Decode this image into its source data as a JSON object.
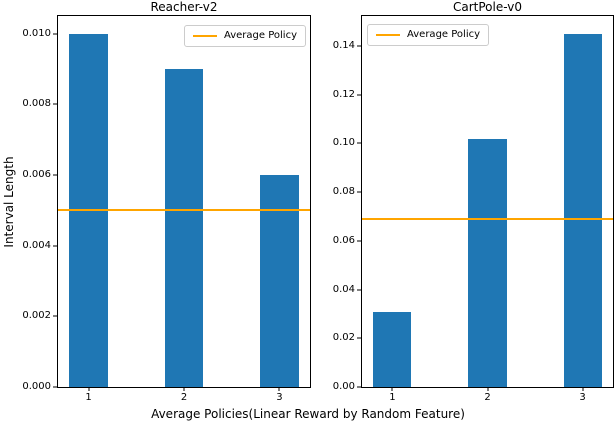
{
  "figure": {
    "xlabel": "Average Policies(Linear Reward by Random Feature)",
    "ylabel": "Interval Length",
    "background": "#ffffff"
  },
  "colors": {
    "bar": "#1f77b4",
    "avg_line": "#ffa500",
    "spine": "#000000",
    "legend_border": "#cccccc"
  },
  "chart_data": [
    {
      "type": "bar",
      "title": "Reacher-v2",
      "categories": [
        "1",
        "2",
        "3"
      ],
      "x": [
        1,
        2,
        3
      ],
      "values": [
        0.01,
        0.009,
        0.006
      ],
      "avg_line": 0.005,
      "legend": [
        "Average Policy"
      ],
      "legend_loc": "upper right",
      "xlim": [
        0.68,
        3.32
      ],
      "ylim": [
        0,
        0.0105
      ],
      "bar_width": 0.4,
      "yticks": [
        0.0,
        0.002,
        0.004,
        0.006,
        0.008,
        0.01
      ],
      "ytick_labels": [
        "0.000",
        "0.002",
        "0.004",
        "0.006",
        "0.008",
        "0.010"
      ],
      "grid": false
    },
    {
      "type": "bar",
      "title": "CartPole-v0",
      "categories": [
        "1",
        "2",
        "3"
      ],
      "x": [
        1,
        2,
        3
      ],
      "values": [
        0.031,
        0.102,
        0.145
      ],
      "avg_line": 0.069,
      "legend": [
        "Average Policy"
      ],
      "legend_loc": "upper left",
      "xlim": [
        0.68,
        3.32
      ],
      "ylim": [
        0,
        0.1523
      ],
      "bar_width": 0.4,
      "yticks": [
        0.0,
        0.02,
        0.04,
        0.06,
        0.08,
        0.1,
        0.12,
        0.14
      ],
      "ytick_labels": [
        "0.00",
        "0.02",
        "0.04",
        "0.06",
        "0.08",
        "0.10",
        "0.12",
        "0.14"
      ],
      "grid": false
    }
  ]
}
